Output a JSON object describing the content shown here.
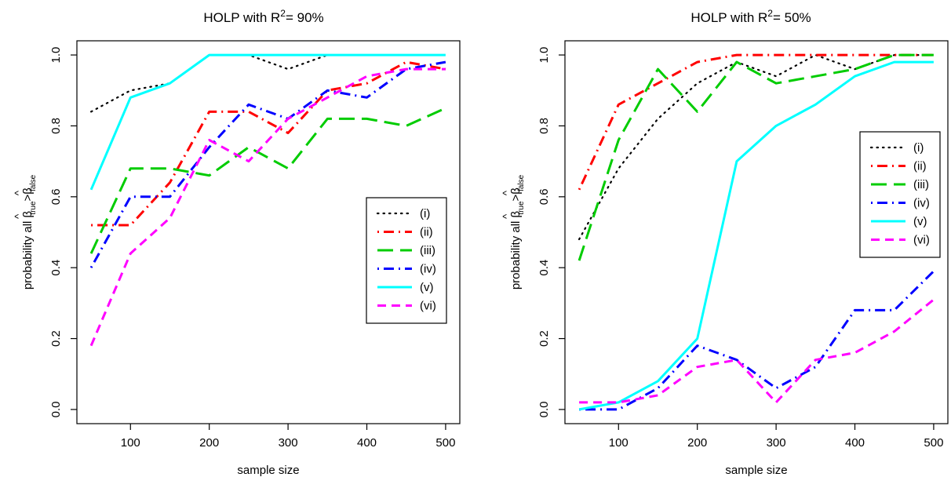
{
  "chart_data": [
    {
      "type": "line",
      "title_main": "HOLP with R",
      "title_sup": "2",
      "title_tail": "= 90%",
      "xlabel": "sample size",
      "ylabel": {
        "main": "probability all ",
        "beta": "β",
        "hat": "^",
        "sub_true": "true",
        "gt": ">",
        "sub_false": "false"
      },
      "xlim": [
        50,
        500
      ],
      "ylim": [
        0,
        1
      ],
      "xticks": [
        "100",
        "200",
        "300",
        "400",
        "500"
      ],
      "yticks": [
        "0.0",
        "0.2",
        "0.4",
        "0.6",
        "0.8",
        "1.0"
      ],
      "legend_position": "right-middle",
      "x": [
        50,
        100,
        150,
        200,
        250,
        300,
        350,
        400,
        450,
        500
      ],
      "series": [
        {
          "name": "(i)",
          "color": "#000000",
          "dash": "dotted",
          "values": [
            0.84,
            0.9,
            0.92,
            1.0,
            1.0,
            0.96,
            1.0,
            1.0,
            1.0,
            1.0
          ]
        },
        {
          "name": "(ii)",
          "color": "#ff0000",
          "dash": "dotdash",
          "values": [
            0.52,
            0.52,
            0.64,
            0.84,
            0.84,
            0.78,
            0.9,
            0.92,
            0.98,
            0.96
          ]
        },
        {
          "name": "(iii)",
          "color": "#00cc00",
          "dash": "longdash",
          "values": [
            0.44,
            0.68,
            0.68,
            0.66,
            0.74,
            0.68,
            0.82,
            0.82,
            0.8,
            0.85
          ]
        },
        {
          "name": "(iv)",
          "color": "#0000ff",
          "dash": "dotdash",
          "values": [
            0.4,
            0.6,
            0.6,
            0.74,
            0.86,
            0.82,
            0.9,
            0.88,
            0.96,
            0.98
          ]
        },
        {
          "name": "(v)",
          "color": "#00ffff",
          "dash": "solid",
          "values": [
            0.62,
            0.88,
            0.92,
            1.0,
            1.0,
            1.0,
            1.0,
            1.0,
            1.0,
            1.0
          ]
        },
        {
          "name": "(vi)",
          "color": "#ff00ff",
          "dash": "dashed",
          "values": [
            0.18,
            0.44,
            0.54,
            0.76,
            0.7,
            0.82,
            0.88,
            0.94,
            0.96,
            0.96
          ]
        }
      ]
    },
    {
      "type": "line",
      "title_main": "HOLP with R",
      "title_sup": "2",
      "title_tail": "= 50%",
      "xlabel": "sample size",
      "ylabel": {
        "main": "probability all ",
        "beta": "β",
        "hat": "^",
        "sub_true": "true",
        "gt": ">",
        "sub_false": "false"
      },
      "xlim": [
        50,
        500
      ],
      "ylim": [
        0,
        1
      ],
      "xticks": [
        "100",
        "200",
        "300",
        "400",
        "500"
      ],
      "yticks": [
        "0.0",
        "0.2",
        "0.4",
        "0.6",
        "0.8",
        "1.0"
      ],
      "legend_position": "right-upper",
      "x": [
        50,
        100,
        150,
        200,
        250,
        300,
        350,
        400,
        450,
        500
      ],
      "series": [
        {
          "name": "(i)",
          "color": "#000000",
          "dash": "dotted",
          "values": [
            0.48,
            0.68,
            0.82,
            0.92,
            0.98,
            0.94,
            1.0,
            0.96,
            1.0,
            1.0
          ]
        },
        {
          "name": "(ii)",
          "color": "#ff0000",
          "dash": "dotdash",
          "values": [
            0.62,
            0.86,
            0.92,
            0.98,
            1.0,
            1.0,
            1.0,
            1.0,
            1.0,
            1.0
          ]
        },
        {
          "name": "(iii)",
          "color": "#00cc00",
          "dash": "longdash",
          "values": [
            0.42,
            0.76,
            0.96,
            0.84,
            0.98,
            0.92,
            0.94,
            0.96,
            1.0,
            1.0
          ]
        },
        {
          "name": "(iv)",
          "color": "#0000ff",
          "dash": "dotdash",
          "values": [
            0.0,
            0.0,
            0.06,
            0.18,
            0.14,
            0.06,
            0.12,
            0.28,
            0.28,
            0.39
          ]
        },
        {
          "name": "(v)",
          "color": "#00ffff",
          "dash": "solid",
          "values": [
            0.0,
            0.02,
            0.08,
            0.2,
            0.7,
            0.8,
            0.86,
            0.94,
            0.98,
            0.98
          ]
        },
        {
          "name": "(vi)",
          "color": "#ff00ff",
          "dash": "dashed",
          "values": [
            0.02,
            0.02,
            0.04,
            0.12,
            0.14,
            0.02,
            0.14,
            0.16,
            0.22,
            0.31
          ]
        }
      ]
    }
  ]
}
